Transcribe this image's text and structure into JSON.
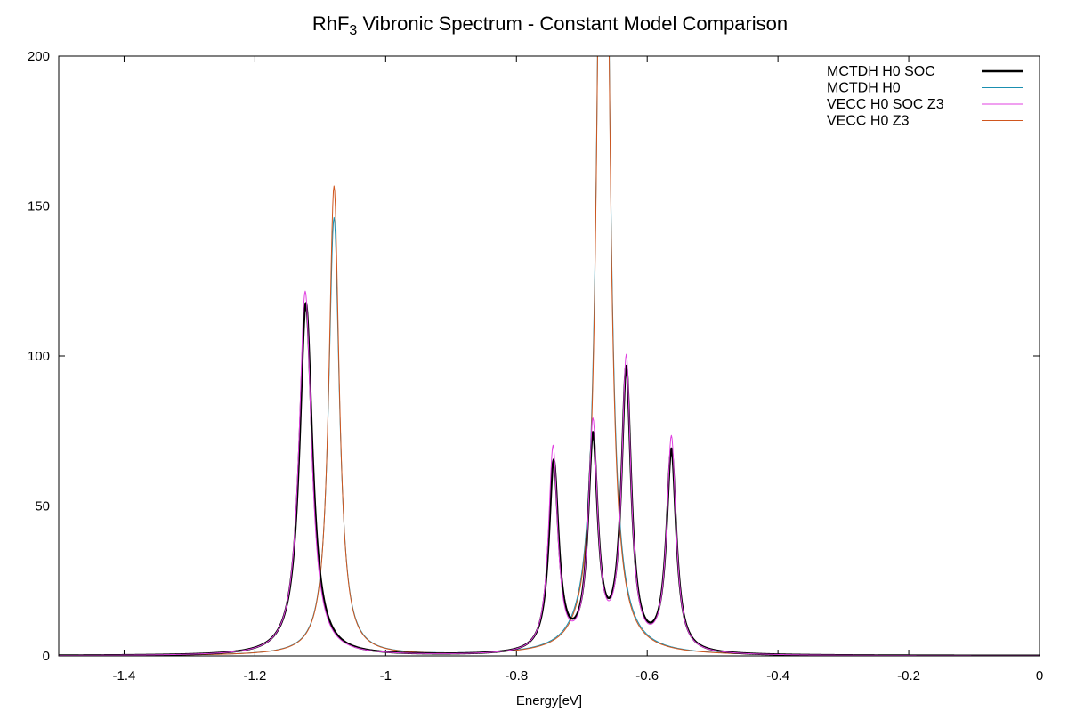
{
  "chart_data": {
    "type": "line",
    "title": {
      "main": "RhF",
      "sub": "3",
      "rest": " Vibronic Spectrum - Constant Model Comparison"
    },
    "xlabel": "Energy[eV]",
    "ylabel": "",
    "xlim": [
      -1.5,
      0
    ],
    "ylim": [
      0,
      200
    ],
    "x_ticks": [
      -1.4,
      -1.2,
      -1,
      -0.8,
      -0.6,
      -0.4,
      -0.2,
      0
    ],
    "x_tick_labels": [
      "-1.4",
      "-1.2",
      "-1",
      "-0.8",
      "-0.6",
      "-0.4",
      "-0.2",
      "0"
    ],
    "y_ticks": [
      0,
      50,
      100,
      150,
      200
    ],
    "y_tick_labels": [
      "0",
      "50",
      "100",
      "150",
      "200"
    ],
    "grid": false,
    "zero_line": true,
    "legend_position": "top-right",
    "series": [
      {
        "name": "MCTDH H0 SOC",
        "color": "#000000",
        "width": 2.4,
        "peaks": [
          {
            "center": -1.122,
            "height": 117.5,
            "width": 0.024
          },
          {
            "center": -0.743,
            "height": 63,
            "width": 0.018
          },
          {
            "center": -0.683,
            "height": 70,
            "width": 0.018
          },
          {
            "center": -0.632,
            "height": 93,
            "width": 0.018
          },
          {
            "center": -0.563,
            "height": 67,
            "width": 0.018
          }
        ]
      },
      {
        "name": "MCTDH H0",
        "color": "#1a8fb0",
        "width": 1.0,
        "peaks": [
          {
            "center": -1.079,
            "height": 146,
            "width": 0.02
          },
          {
            "center": -0.667,
            "height": 400,
            "width": 0.018
          }
        ]
      },
      {
        "name": "VECC    H0 SOC Z3",
        "color": "#e040e0",
        "width": 1.0,
        "peaks": [
          {
            "center": -1.123,
            "height": 121.5,
            "width": 0.023
          },
          {
            "center": -0.744,
            "height": 68,
            "width": 0.017
          },
          {
            "center": -0.683,
            "height": 75,
            "width": 0.017
          },
          {
            "center": -0.632,
            "height": 97,
            "width": 0.017
          },
          {
            "center": -0.563,
            "height": 71.5,
            "width": 0.017
          }
        ]
      },
      {
        "name": "VECC    H0      Z3",
        "color": "#d0561e",
        "width": 1.0,
        "peaks": [
          {
            "center": -1.079,
            "height": 156.5,
            "width": 0.019
          },
          {
            "center": -0.667,
            "height": 420,
            "width": 0.017
          }
        ]
      }
    ]
  }
}
